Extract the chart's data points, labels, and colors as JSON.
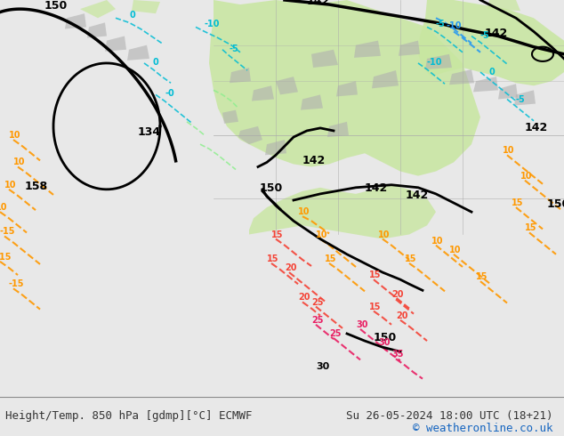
{
  "title_left": "Height/Temp. 850 hPa [gdmp][°C] ECMWF",
  "title_right": "Su 26-05-2024 18:00 UTC (18+21)",
  "copyright": "© weatheronline.co.uk",
  "bg_color": "#e8e8e8",
  "map_bg": "#f0f0f0",
  "bottom_bar_color": "#ffffff",
  "figsize": [
    6.34,
    4.9
  ],
  "dpi": 100,
  "green_fill_color": "#c8e6a0",
  "gray_fill_color": "#b0b0b0",
  "contour_black_color": "#000000",
  "contour_cyan_color": "#00bcd4",
  "contour_blue_color": "#2196f3",
  "contour_green_color": "#8bc34a",
  "contour_orange_color": "#ff9800",
  "contour_red_color": "#f44336",
  "contour_pink_color": "#e91e63",
  "contour_lgreen_color": "#aeea00",
  "bottom_text_color": "#333333",
  "copyright_color": "#1565c0"
}
